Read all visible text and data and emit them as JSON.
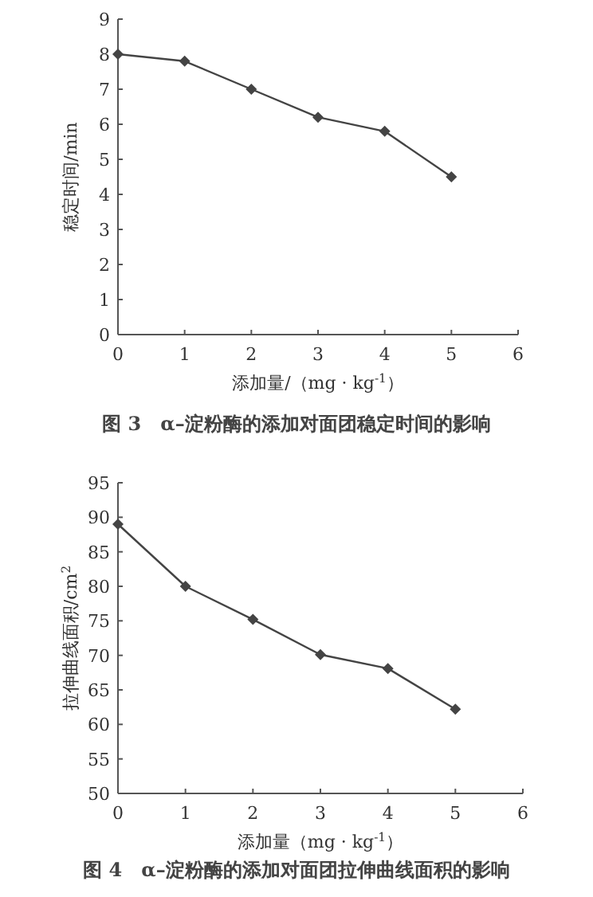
{
  "chart_data": [
    {
      "type": "line",
      "title": "图 3　α–淀粉酶的添加对面团稳定时间的影响",
      "xlabel": "添加量/（mg · kg$^{-1}$）",
      "ylabel": "稳定时间/min",
      "x": [
        0,
        1,
        2,
        3,
        4,
        5
      ],
      "values": [
        8.0,
        7.8,
        7.0,
        6.2,
        5.8,
        4.5
      ],
      "color": "#444444",
      "marker": "diamond",
      "line_style": "solid",
      "grid": false,
      "xlim": [
        0,
        6
      ],
      "xticks": [
        0,
        1,
        2,
        3,
        4,
        5,
        6
      ],
      "ylim": [
        0,
        9
      ],
      "yticks": [
        0,
        1,
        2,
        3,
        4,
        5,
        6,
        7,
        8,
        9
      ]
    },
    {
      "type": "line",
      "title": "图 4　α–淀粉酶的添加对面团拉伸曲线面积的影响",
      "xlabel": "添加量（mg · kg$^{-1}$）",
      "ylabel": "拉伸曲线面积/cm$^{2}$",
      "x": [
        0,
        1,
        2,
        3,
        4,
        5
      ],
      "values": [
        89,
        80,
        75.2,
        70.1,
        68.1,
        62.2
      ],
      "color": "#444444",
      "marker": "diamond",
      "line_style": "solid",
      "grid": false,
      "xlim": [
        0,
        6
      ],
      "xticks": [
        0,
        1,
        2,
        3,
        4,
        5,
        6
      ],
      "ylim": [
        50,
        95
      ],
      "yticks": [
        50,
        55,
        60,
        65,
        70,
        75,
        80,
        85,
        90,
        95
      ]
    }
  ]
}
